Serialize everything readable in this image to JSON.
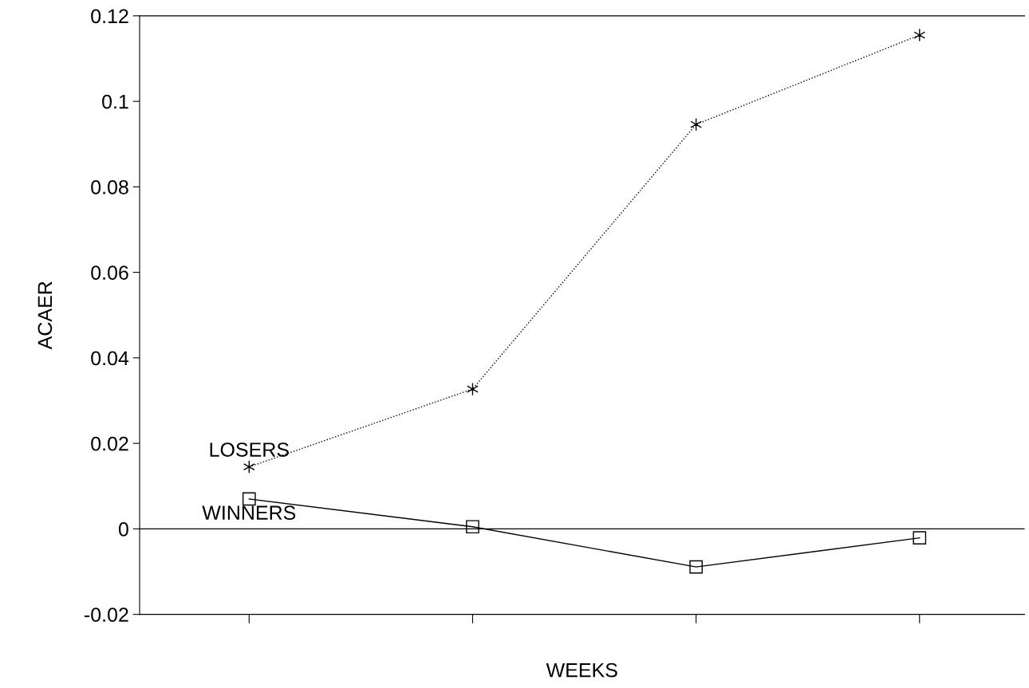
{
  "chart_data": {
    "type": "line",
    "xlabel": "WEEKS",
    "ylabel": "ACAER",
    "categories": [
      null,
      null,
      null,
      null
    ],
    "series": [
      {
        "name": "LOSERS",
        "color": "#000000",
        "marker": "cross",
        "line_style": "dotted",
        "values": [
          0.0145,
          0.0327,
          0.0946,
          0.1155
        ]
      },
      {
        "name": "WINNERS",
        "color": "#000000",
        "marker": "square",
        "line_style": "solid",
        "values": [
          0.007,
          0.0005,
          -0.0089,
          -0.0021
        ]
      }
    ],
    "ylim": [
      -0.02,
      0.12
    ],
    "yticks": [
      {
        "value": -0.02,
        "label": "-0.02"
      },
      {
        "value": 0,
        "label": "0"
      },
      0.02,
      0.04,
      0.06,
      0.08,
      {
        "value": 0.1,
        "label": "0.1"
      },
      0.12
    ],
    "ref_lines": [
      {
        "axis": "y",
        "value": 0,
        "color": "#000000",
        "line_style": "solid"
      }
    ],
    "grid": false,
    "legend": false
  }
}
